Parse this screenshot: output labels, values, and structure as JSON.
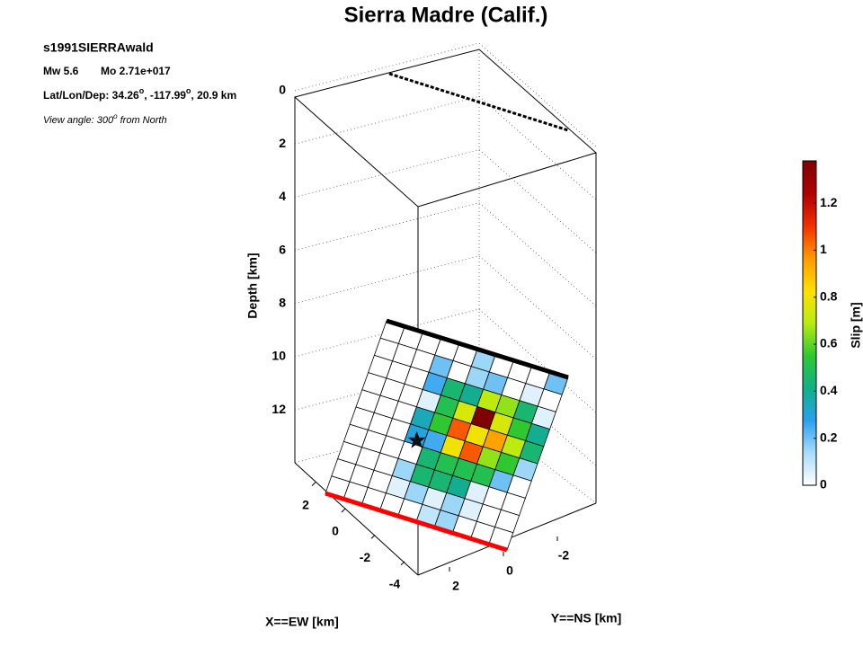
{
  "chart_data": {
    "type": "fault-slip-3d",
    "title": "Sierra Madre (Calif.)",
    "model_name": "s1991SIERRAwald",
    "magnitude": "Mw 5.6",
    "moment": "Mo 2.71e+017",
    "location_label": "Lat/Lon/Dep:",
    "latitude": "34.26",
    "longitude": "-117.99",
    "depth": "20.9 km",
    "degree_symbol": "o",
    "view_label": "View angle: 300",
    "view_suffix": "from North",
    "zlabel": "Depth [km]",
    "xlabel": "X==EW [km]",
    "ylabel": "Y==NS [km]",
    "zticks": [
      0,
      2,
      4,
      6,
      8,
      10,
      12
    ],
    "xticks": [
      2,
      0,
      -2,
      -4
    ],
    "yticks": [
      2,
      0,
      -2
    ],
    "slip": [
      [
        0,
        0,
        0,
        0,
        0,
        0.15,
        0,
        0,
        0,
        0.2
      ],
      [
        0,
        0,
        0,
        0.2,
        0,
        0.15,
        0.2,
        0,
        0.05,
        0
      ],
      [
        0,
        0,
        0,
        0.25,
        0.45,
        0.4,
        0.7,
        0.65,
        0.45,
        0.05
      ],
      [
        0,
        0,
        0,
        0.05,
        0.5,
        0.75,
        1.38,
        0.75,
        0.55,
        0.4
      ],
      [
        0,
        0,
        0,
        0.35,
        0.55,
        1.05,
        0.8,
        0.95,
        0.7,
        0.45
      ],
      [
        0,
        0,
        0,
        0.3,
        0.25,
        0.8,
        1.05,
        0.65,
        0.55,
        0.15
      ],
      [
        0,
        0,
        0,
        0,
        0.45,
        0.5,
        0.5,
        0.5,
        0.2,
        0
      ],
      [
        0,
        0,
        0,
        0.15,
        0.45,
        0.45,
        0.4,
        0.05,
        0,
        0
      ],
      [
        0,
        0,
        0,
        0.05,
        0.15,
        0.05,
        0.15,
        0.05,
        0,
        0
      ],
      [
        0,
        0,
        0,
        0,
        0,
        0.1,
        0.15,
        0,
        0,
        0
      ]
    ],
    "hypocenter": [
      3.6,
      5.75
    ],
    "clim": [
      0,
      1.38
    ],
    "colorbar_label": "Slip [m]",
    "colorbar_ticks": [
      0,
      0.2,
      0.4,
      0.6,
      0.8,
      1,
      1.2
    ],
    "colormap": [
      "#ffffff",
      "#a8dcf8",
      "#2aa0ee",
      "#10b088",
      "#30c830",
      "#b8ec10",
      "#ffe000",
      "#ff9a00",
      "#f03000",
      "#b00000",
      "#800000"
    ],
    "top_edge_color": "#000000",
    "bottom_edge_color": "#ff0000"
  }
}
